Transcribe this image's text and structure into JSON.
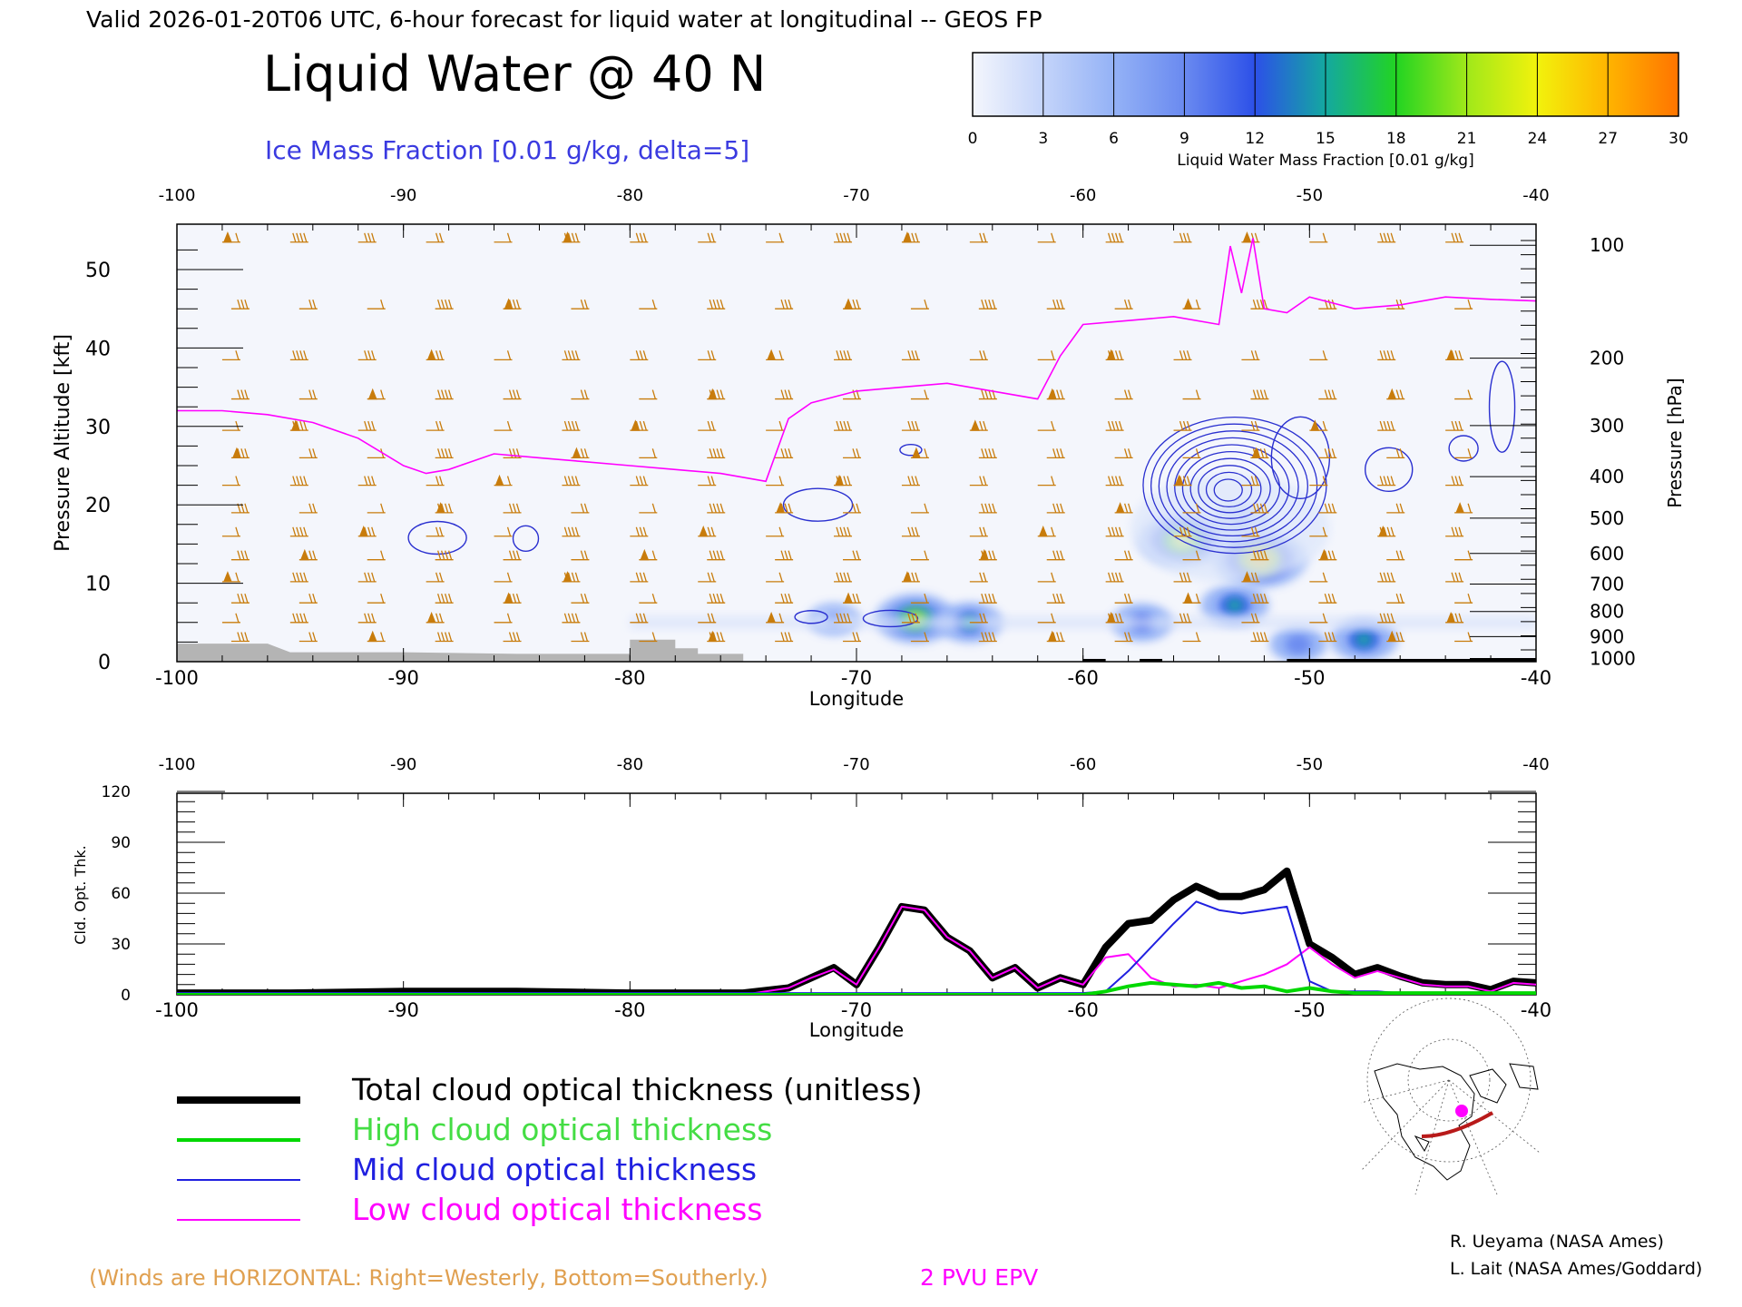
{
  "header": {
    "top_title": "Valid 2026-01-20T06 UTC, 6-hour forecast for liquid water at longitudinal -- GEOS FP",
    "main_title": "Liquid Water @ 40 N",
    "subtitle": "Ice Mass Fraction [0.01 g/kg, delta=5]"
  },
  "colorbar": {
    "label": "Liquid Water Mass Fraction [0.01 g/kg]",
    "ticks": [
      "0",
      "3",
      "6",
      "9",
      "12",
      "15",
      "18",
      "21",
      "24",
      "27",
      "30"
    ],
    "colors": [
      "#f4f6fc",
      "#c4d4fa",
      "#94b2f6",
      "#6a8af0",
      "#2c50e8",
      "#14a8a0",
      "#22d422",
      "#a0e81a",
      "#f2f20c",
      "#ffb400",
      "#ff7400"
    ]
  },
  "colors": {
    "total": "#000000",
    "high": "#00d800",
    "mid": "#2020e0",
    "low": "#ff00ff",
    "winds": "#c87c0c",
    "ice_contours": "#2a30d0",
    "epv": "#ff00ff",
    "terrain": "#b4b4b4"
  },
  "chart_data": [
    {
      "type": "heatmap",
      "xlabel": "Longitude",
      "ylabel": "Pressure Altitude [kft]",
      "ylabel_right": "Pressure [hPa]",
      "xlim": [
        -100,
        -40
      ],
      "ylim": [
        0,
        55
      ],
      "x_ticks": [
        "-100",
        "-90",
        "-80",
        "-70",
        "-60",
        "-50",
        "-40"
      ],
      "y_ticks": [
        "0",
        "10",
        "20",
        "30",
        "40",
        "50"
      ],
      "pressure_ticks": [
        {
          "hPa": "100",
          "kft": 53.1
        },
        {
          "hPa": "200",
          "kft": 38.7
        },
        {
          "hPa": "300",
          "kft": 30.1
        },
        {
          "hPa": "400",
          "kft": 23.6
        },
        {
          "hPa": "500",
          "kft": 18.3
        },
        {
          "hPa": "600",
          "kft": 13.8
        },
        {
          "hPa": "700",
          "kft": 9.9
        },
        {
          "hPa": "800",
          "kft": 6.4
        },
        {
          "hPa": "900",
          "kft": 3.2
        },
        {
          "hPa": "1000",
          "kft": 0.4
        }
      ],
      "liquid_water_blobs": [
        {
          "lon": -55.6,
          "kft": 15.5,
          "value": 24
        },
        {
          "lon": -52.2,
          "kft": 13.1,
          "value": 27
        },
        {
          "lon": -67.4,
          "kft": 5.5,
          "value": 21
        },
        {
          "lon": -65.0,
          "kft": 5.0,
          "value": 14
        },
        {
          "lon": -47.6,
          "kft": 2.8,
          "value": 15
        },
        {
          "lon": -53.3,
          "kft": 7.2,
          "value": 15
        },
        {
          "lon": -57.4,
          "kft": 5.0,
          "value": 12
        },
        {
          "lon": -53.0,
          "kft": 18.0,
          "value": 9
        },
        {
          "lon": -50.5,
          "kft": 2.2,
          "value": 10
        },
        {
          "lon": -71.0,
          "kft": 5.4,
          "value": 8
        }
      ],
      "epv_2pvu_line": {
        "lon": [
          -100,
          -98,
          -96,
          -94,
          -92,
          -90,
          -89,
          -88,
          -86,
          -84,
          -82,
          -80,
          -78,
          -76,
          -74,
          -73,
          -72,
          -70,
          -68,
          -66,
          -64,
          -62,
          -61,
          -60,
          -58,
          -56,
          -54,
          -53.5,
          -53,
          -52.5,
          -52,
          -51,
          -50,
          -48,
          -46,
          -44,
          -42,
          -40
        ],
        "kft": [
          32,
          32,
          31.5,
          30.5,
          28.5,
          25,
          24,
          24.5,
          26.5,
          26,
          25.5,
          25,
          24.5,
          24,
          23,
          31,
          33,
          34.5,
          35,
          35.5,
          34.5,
          33.5,
          39,
          43,
          43.5,
          44,
          43,
          53,
          47,
          54,
          45,
          44.5,
          46.5,
          45,
          45.5,
          46.5,
          46.2,
          46
        ]
      },
      "ice_mass_fraction_center": {
        "lon": -53.3,
        "kft": 22.5,
        "max": 45
      }
    },
    {
      "type": "line",
      "ylabel": "Cld. Opt. Thk.",
      "xlabel": "Longitude",
      "xlim": [
        -100,
        -40
      ],
      "ylim": [
        0,
        120
      ],
      "x_ticks": [
        "-100",
        "-90",
        "-80",
        "-70",
        "-60",
        "-50",
        "-40"
      ],
      "y_ticks": [
        "0",
        "30",
        "60",
        "90",
        "120"
      ],
      "x": [
        -100,
        -95,
        -90,
        -85,
        -80,
        -75,
        -73,
        -72,
        -71,
        -70,
        -69,
        -68,
        -67,
        -66,
        -65,
        -64,
        -63,
        -62,
        -61,
        -60,
        -59,
        -58,
        -57,
        -56,
        -55,
        -54,
        -53,
        -52,
        -51,
        -50,
        -49,
        -48,
        -47,
        -46,
        -45,
        -44,
        -43,
        -42,
        -41,
        -40
      ],
      "series": [
        {
          "name": "Total cloud optical thickness (unitless)",
          "values": [
            1,
            1,
            2,
            2,
            1,
            1,
            4,
            10,
            16,
            6,
            28,
            52,
            50,
            34,
            26,
            10,
            16,
            4,
            10,
            6,
            28,
            42,
            44,
            56,
            64,
            58,
            58,
            62,
            73,
            30,
            22,
            12,
            16,
            11,
            7,
            6,
            6,
            3,
            8,
            7
          ]
        },
        {
          "name": "High cloud optical thickness",
          "values": [
            0,
            0,
            0,
            0,
            0,
            0,
            0,
            0,
            0,
            0,
            0,
            0,
            0,
            0,
            0,
            0,
            0,
            0,
            0,
            0,
            2,
            5,
            7,
            6,
            5,
            7,
            4,
            5,
            2,
            4,
            2,
            1,
            1,
            1,
            1,
            1,
            1,
            1,
            1,
            1
          ]
        },
        {
          "name": "Mid cloud optical thickness",
          "values": [
            1,
            1,
            1,
            1,
            1,
            1,
            1,
            1,
            1,
            1,
            1,
            1,
            1,
            1,
            1,
            1,
            1,
            1,
            1,
            1,
            2,
            14,
            28,
            42,
            55,
            50,
            48,
            50,
            52,
            8,
            2,
            2,
            2,
            1,
            1,
            1,
            1,
            1,
            1,
            1
          ]
        },
        {
          "name": "Low cloud optical thickness",
          "values": [
            0,
            0,
            0,
            0,
            0,
            0,
            4,
            10,
            15,
            6,
            28,
            52,
            50,
            34,
            26,
            10,
            16,
            4,
            10,
            6,
            22,
            24,
            10,
            5,
            6,
            4,
            8,
            12,
            18,
            28,
            18,
            10,
            14,
            10,
            6,
            5,
            5,
            2,
            7,
            6
          ]
        }
      ]
    }
  ],
  "legend": [
    {
      "label": "Total cloud optical thickness (unitless)",
      "color": "#000000",
      "width": 8
    },
    {
      "label": "High cloud optical thickness",
      "color": "#00d800",
      "width": 4
    },
    {
      "label": "Mid cloud optical thickness",
      "color": "#2020e0",
      "width": 2
    },
    {
      "label": "Low cloud optical thickness",
      "color": "#ff00ff",
      "width": 2
    }
  ],
  "footer": {
    "winds_note": "(Winds are HORIZONTAL: Right=Westerly, Bottom=Southerly.)",
    "epv_note": "2 PVU EPV",
    "credit1": "R. Ueyama (NASA Ames)",
    "credit2": "L. Lait (NASA Ames/Goddard)"
  }
}
